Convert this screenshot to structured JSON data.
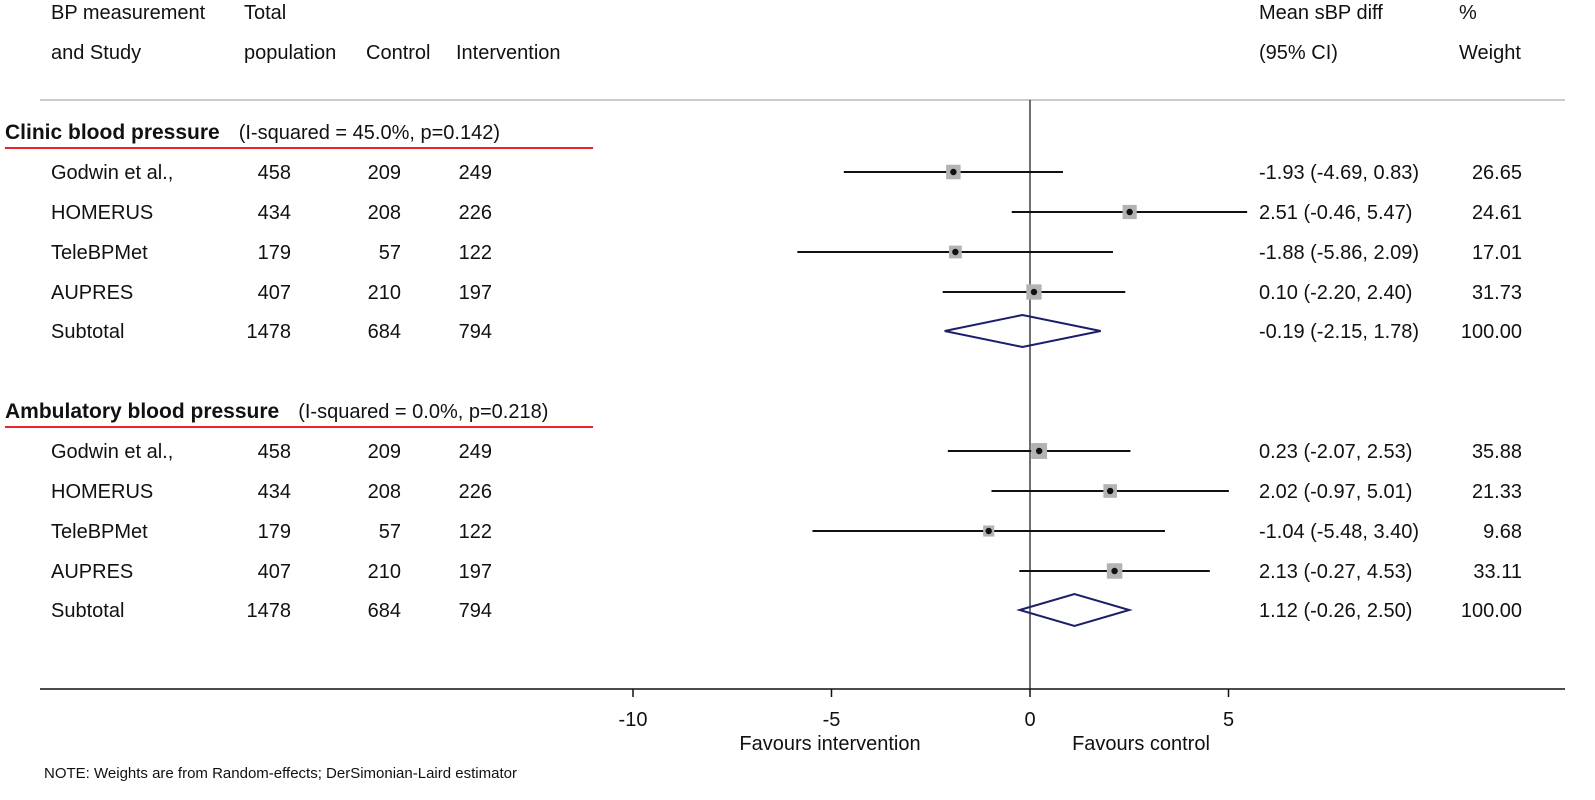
{
  "header": {
    "study_label_line1": "BP measurement",
    "study_label_line2": "and Study",
    "total_label_line1": "Total",
    "total_label_line2": "population",
    "control_label": "Control",
    "intervention_label": "Intervention",
    "effect_label_line1": "Mean sBP diff",
    "effect_label_line2": "(95% CI)",
    "weight_label_line1": "%",
    "weight_label_line2": "Weight"
  },
  "footnote": "NOTE: Weights are from Random-effects; DerSimonian-Laird estimator",
  "colors": {
    "text": "#111111",
    "underline": "#e8262a",
    "diamond": "#1a1f6b",
    "square": "#b3b3b3",
    "axis": "#111111"
  },
  "chart_data": {
    "type": "forest",
    "x_axis": {
      "ticks": [
        -10,
        -5,
        0,
        5
      ],
      "tick_labels": [
        "-10",
        "-5",
        "0",
        "5"
      ],
      "range": [
        -10,
        5
      ],
      "reference_line": 0,
      "left_label": "Favours intervention",
      "right_label": "Favours control"
    },
    "groups": [
      {
        "name": "Clinic blood pressure",
        "heterogeneity": "(I-squared = 45.0%, p=0.142)",
        "studies": [
          {
            "study": "Godwin et al.,",
            "total": "458",
            "control": "209",
            "intervention": "249",
            "estimate": -1.93,
            "lower": -4.69,
            "upper": 0.83,
            "ci_text": "-1.93 (-4.69, 0.83)",
            "weight": 26.65,
            "weight_text": "26.65"
          },
          {
            "study": "HOMERUS",
            "total": "434",
            "control": "208",
            "intervention": "226",
            "estimate": 2.51,
            "lower": -0.46,
            "upper": 5.47,
            "ci_text": "2.51 (-0.46, 5.47)",
            "weight": 24.61,
            "weight_text": "24.61"
          },
          {
            "study": "TeleBPMet",
            "total": "179",
            "control": "57",
            "intervention": "122",
            "estimate": -1.88,
            "lower": -5.86,
            "upper": 2.09,
            "ci_text": "-1.88 (-5.86, 2.09)",
            "weight": 17.01,
            "weight_text": "17.01"
          },
          {
            "study": "AUPRES",
            "total": "407",
            "control": "210",
            "intervention": "197",
            "estimate": 0.1,
            "lower": -2.2,
            "upper": 2.4,
            "ci_text": "0.10 (-2.20, 2.40)",
            "weight": 31.73,
            "weight_text": "31.73"
          }
        ],
        "subtotal": {
          "label": "Subtotal",
          "total": "1478",
          "control": "684",
          "intervention": "794",
          "estimate": -0.19,
          "lower": -2.15,
          "upper": 1.78,
          "ci_text": "-0.19 (-2.15, 1.78)",
          "weight_text": "100.00"
        }
      },
      {
        "name": "Ambulatory blood pressure",
        "heterogeneity": "(I-squared = 0.0%, p=0.218)",
        "studies": [
          {
            "study": "Godwin et al.,",
            "total": "458",
            "control": "209",
            "intervention": "249",
            "estimate": 0.23,
            "lower": -2.07,
            "upper": 2.53,
            "ci_text": "0.23 (-2.07, 2.53)",
            "weight": 35.88,
            "weight_text": "35.88"
          },
          {
            "study": "HOMERUS",
            "total": "434",
            "control": "208",
            "intervention": "226",
            "estimate": 2.02,
            "lower": -0.97,
            "upper": 5.01,
            "ci_text": "2.02 (-0.97, 5.01)",
            "weight": 21.33,
            "weight_text": "21.33"
          },
          {
            "study": "TeleBPMet",
            "total": "179",
            "control": "57",
            "intervention": "122",
            "estimate": -1.04,
            "lower": -5.48,
            "upper": 3.4,
            "ci_text": "-1.04 (-5.48, 3.40)",
            "weight": 9.68,
            "weight_text": "9.68"
          },
          {
            "study": "AUPRES",
            "total": "407",
            "control": "210",
            "intervention": "197",
            "estimate": 2.13,
            "lower": -0.27,
            "upper": 4.53,
            "ci_text": "2.13 (-0.27, 4.53)",
            "weight": 33.11,
            "weight_text": "33.11"
          }
        ],
        "subtotal": {
          "label": "Subtotal",
          "total": "1478",
          "control": "684",
          "intervention": "794",
          "estimate": 1.12,
          "lower": -0.26,
          "upper": 2.5,
          "ci_text": "1.12 (-0.26, 2.50)",
          "weight_text": "100.00"
        }
      }
    ]
  }
}
